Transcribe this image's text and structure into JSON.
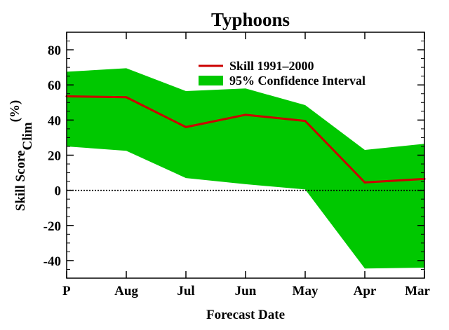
{
  "chart_data": {
    "type": "line",
    "title": "Typhoons",
    "xlabel": "Forecast Date",
    "ylabel_main": "Skill Score",
    "ylabel_sub": "Clim",
    "ylabel_unit": "(%)",
    "categories": [
      "P",
      "Aug",
      "Jul",
      "Jun",
      "May",
      "Apr",
      "Mar"
    ],
    "ylim": [
      -50,
      90
    ],
    "yticks": [
      -40,
      -20,
      0,
      20,
      40,
      60,
      80
    ],
    "zero_line": "dotted",
    "legend_placement": "top-right",
    "series": [
      {
        "name": "Skill 1991–2000",
        "values": [
          53.5,
          53,
          36,
          43,
          39.5,
          4.5,
          6.5
        ],
        "color": "#cc0000"
      }
    ],
    "band": {
      "name": "95% Confidence Interval",
      "upper": [
        67.5,
        69.5,
        56.5,
        58,
        48.5,
        23,
        26.5
      ],
      "lower": [
        25,
        22.5,
        7,
        3.5,
        0.5,
        -44.5,
        -44
      ],
      "color": "#00c800"
    }
  }
}
